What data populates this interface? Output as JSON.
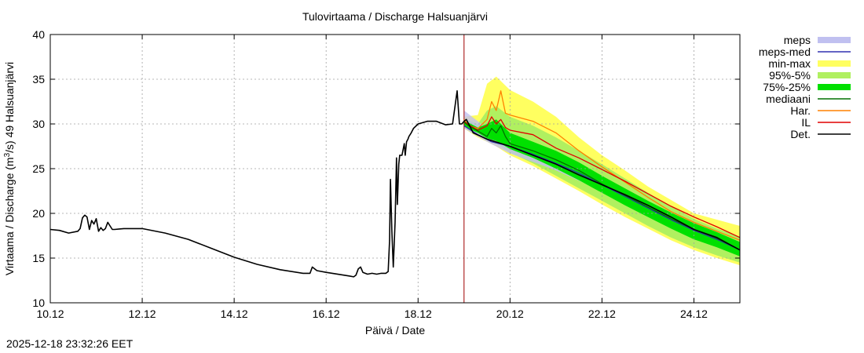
{
  "chart_data": {
    "type": "line",
    "title": "Tulovirtaama / Discharge  Halsuanjärvi",
    "xlabel": "Päivä / Date",
    "ylabel": "Virtaama / Discharge (m³/s)  49 Halsuanjärvi",
    "ylabel_parts": [
      "Virtaama / Discharge (m",
      "3",
      "/s)  49 Halsuanjärvi"
    ],
    "xlim": [
      0,
      15
    ],
    "ylim": [
      10,
      40
    ],
    "x_ticks": [
      {
        "x": 0,
        "label": "10.12"
      },
      {
        "x": 2,
        "label": "12.12"
      },
      {
        "x": 4,
        "label": "14.12"
      },
      {
        "x": 6,
        "label": "16.12"
      },
      {
        "x": 8,
        "label": "18.12"
      },
      {
        "x": 10,
        "label": "20.12"
      },
      {
        "x": 12,
        "label": "22.12"
      },
      {
        "x": 14,
        "label": "24.12"
      }
    ],
    "y_ticks": [
      10,
      15,
      20,
      25,
      30,
      35,
      40
    ],
    "grid": true,
    "forecast_start_x": 9.0,
    "legend": [
      {
        "label": "meps",
        "kind": "band",
        "color": "#c0c0f0"
      },
      {
        "label": "meps-med",
        "kind": "line",
        "color": "#3030b0"
      },
      {
        "label": "min-max",
        "kind": "band",
        "color": "#ffff60"
      },
      {
        "label": "95%-5%",
        "kind": "band",
        "color": "#b0f060"
      },
      {
        "label": "75%-25%",
        "kind": "band",
        "color": "#00e000"
      },
      {
        "label": "mediaani",
        "kind": "line",
        "color": "#007000"
      },
      {
        "label": "Har.",
        "kind": "line",
        "color": "#ff8000"
      },
      {
        "label": "IL",
        "kind": "line",
        "color": "#e00000"
      },
      {
        "label": "Det.",
        "kind": "line",
        "color": "#000000"
      }
    ],
    "series": [
      {
        "name": "Det.",
        "color": "#000000",
        "x": [
          0,
          0.2,
          0.4,
          0.6,
          0.65,
          0.7,
          0.75,
          0.8,
          0.85,
          0.9,
          0.95,
          1.0,
          1.05,
          1.1,
          1.15,
          1.2,
          1.25,
          1.3,
          1.35,
          1.4,
          1.5,
          1.6,
          2.0,
          2.5,
          3.0,
          3.5,
          4.0,
          4.5,
          5.0,
          5.5,
          5.65,
          5.7,
          5.75,
          5.8,
          6.0,
          6.5,
          6.6,
          6.65,
          6.7,
          6.75,
          6.8,
          6.9,
          7.0,
          7.1,
          7.2,
          7.3,
          7.35,
          7.38,
          7.4,
          7.43,
          7.46,
          7.5,
          7.53,
          7.55,
          7.58,
          7.6,
          7.65,
          7.7,
          7.72,
          7.75,
          7.78,
          7.8,
          7.85,
          7.9,
          8.0,
          8.2,
          8.4,
          8.6,
          8.75,
          8.85,
          8.9,
          8.95,
          9.0,
          9.05,
          9.2,
          9.5,
          10.0,
          10.5,
          11.0,
          11.5,
          12.0,
          12.5,
          13.0,
          13.5,
          14.0,
          14.5,
          15.0
        ],
        "y": [
          18.2,
          18.1,
          17.8,
          18.0,
          18.3,
          19.5,
          19.8,
          19.6,
          18.2,
          19.2,
          18.8,
          19.4,
          18.0,
          18.4,
          18.1,
          18.3,
          19.0,
          18.6,
          18.2,
          18.2,
          18.25,
          18.3,
          18.3,
          17.8,
          17.1,
          16.1,
          15.1,
          14.3,
          13.7,
          13.3,
          13.3,
          14.0,
          13.8,
          13.6,
          13.4,
          13.0,
          12.9,
          13.1,
          13.8,
          14.0,
          13.4,
          13.2,
          13.3,
          13.2,
          13.3,
          13.3,
          13.5,
          17.0,
          23.8,
          18.0,
          14.0,
          19.0,
          26.2,
          21.0,
          25.5,
          26.5,
          26.5,
          27.8,
          26.5,
          28.0,
          28.3,
          28.6,
          29.0,
          29.5,
          30.0,
          30.3,
          30.3,
          29.9,
          30.0,
          33.7,
          30.0,
          30.0,
          30.3,
          30.5,
          29.0,
          28.3,
          27.5,
          26.5,
          25.5,
          24.3,
          23.2,
          22.1,
          20.9,
          19.6,
          18.2,
          17.3,
          15.9
        ]
      },
      {
        "name": "mediaani",
        "color": "#007000",
        "x": [
          9.0,
          9.1,
          9.3,
          9.5,
          9.6,
          9.7,
          9.8,
          9.9,
          10.0,
          10.5,
          11.0,
          11.5,
          12.0,
          12.5,
          13.0,
          13.5,
          14.0,
          14.5,
          15.0
        ],
        "y": [
          30.2,
          29.8,
          29.2,
          28.6,
          29.5,
          29.0,
          29.8,
          28.6,
          27.8,
          27.0,
          26.0,
          24.8,
          23.3,
          22.0,
          20.7,
          19.4,
          18.2,
          17.2,
          15.9
        ]
      },
      {
        "name": "Har.",
        "color": "#ff8000",
        "x": [
          9.0,
          9.1,
          9.3,
          9.5,
          9.6,
          9.7,
          9.8,
          9.9,
          10.0,
          10.5,
          11.0,
          11.5,
          12.0,
          12.5,
          13.0,
          13.5,
          14.0,
          14.5,
          15.0
        ],
        "y": [
          30.5,
          29.8,
          29.5,
          30.5,
          32.5,
          31.5,
          33.7,
          31.2,
          31.0,
          30.3,
          29.0,
          27.0,
          25.2,
          23.5,
          21.8,
          20.2,
          19.0,
          18.0,
          17.0
        ]
      },
      {
        "name": "IL",
        "color": "#e00000",
        "x": [
          9.0,
          9.1,
          9.3,
          9.5,
          9.6,
          9.7,
          9.8,
          9.9,
          10.0,
          10.5,
          11.0,
          11.5,
          12.0,
          12.5,
          13.0,
          13.5,
          14.0,
          14.5,
          15.0
        ],
        "y": [
          30.3,
          29.9,
          29.3,
          29.8,
          30.8,
          30.0,
          30.5,
          29.6,
          29.3,
          28.8,
          27.3,
          26.2,
          24.9,
          23.6,
          22.2,
          20.8,
          19.6,
          18.5,
          17.3
        ]
      },
      {
        "name": "meps-med",
        "color": "#3030b0",
        "x": [
          9.0,
          9.3,
          9.6,
          10.0,
          10.5,
          11.0,
          11.5,
          12.0,
          12.5,
          13.0,
          13.5,
          14.0,
          14.5,
          15.0
        ],
        "y": [
          29.8,
          28.8,
          28.0,
          27.5,
          26.6,
          25.6,
          24.5,
          23.2,
          21.9,
          20.6,
          19.3,
          18.1,
          17.1,
          15.9
        ]
      }
    ],
    "bands": [
      {
        "name": "meps",
        "color": "#c0c0f0",
        "x": [
          9.0,
          9.5,
          10.0,
          11.0,
          12.0,
          13.0,
          14.0,
          15.0
        ],
        "lower": [
          29.5,
          28.0,
          26.7,
          24.8,
          22.5,
          20.2,
          17.9,
          15.6
        ],
        "upper": [
          31.5,
          29.5,
          28.0,
          26.0,
          23.6,
          21.2,
          18.7,
          16.3
        ]
      },
      {
        "name": "min-max",
        "color": "#ffff60",
        "x": [
          9.0,
          9.3,
          9.5,
          9.7,
          10.0,
          10.5,
          11.0,
          11.5,
          12.0,
          12.5,
          13.0,
          13.5,
          14.0,
          14.5,
          15.0
        ],
        "lower": [
          29.5,
          28.5,
          28.0,
          27.5,
          26.5,
          25.3,
          23.9,
          22.5,
          21.0,
          19.6,
          18.3,
          17.0,
          15.9,
          15.0,
          14.2
        ],
        "upper": [
          30.8,
          31.0,
          34.5,
          35.3,
          33.8,
          32.5,
          30.8,
          28.5,
          26.5,
          24.8,
          23.0,
          21.5,
          20.0,
          19.3,
          18.6
        ]
      },
      {
        "name": "95%-5%",
        "color": "#b0f060",
        "x": [
          9.0,
          9.3,
          9.5,
          9.7,
          10.0,
          10.5,
          11.0,
          11.5,
          12.0,
          12.5,
          13.0,
          13.5,
          14.0,
          14.5,
          15.0
        ],
        "lower": [
          29.6,
          28.8,
          28.2,
          27.8,
          26.8,
          25.6,
          24.2,
          22.8,
          21.4,
          20.0,
          18.6,
          17.3,
          16.2,
          15.3,
          14.5
        ],
        "upper": [
          30.6,
          30.0,
          31.5,
          32.0,
          30.8,
          29.8,
          28.5,
          27.0,
          25.5,
          23.9,
          22.3,
          20.8,
          19.4,
          18.3,
          17.4
        ]
      },
      {
        "name": "75%-25%",
        "color": "#00e000",
        "x": [
          9.0,
          9.3,
          9.5,
          9.7,
          10.0,
          10.5,
          11.0,
          11.5,
          12.0,
          12.5,
          13.0,
          13.5,
          14.0,
          14.5,
          15.0
        ],
        "lower": [
          29.7,
          29.0,
          28.4,
          28.1,
          27.2,
          26.2,
          25.0,
          23.7,
          22.3,
          20.9,
          19.6,
          18.3,
          17.1,
          16.2,
          15.2
        ],
        "upper": [
          30.4,
          29.6,
          30.0,
          30.5,
          29.0,
          28.0,
          27.0,
          25.7,
          24.2,
          22.8,
          21.4,
          20.1,
          18.9,
          17.9,
          16.8
        ]
      }
    ]
  },
  "footer": {
    "timestamp": "2025-12-18 23:32:26 EET"
  }
}
